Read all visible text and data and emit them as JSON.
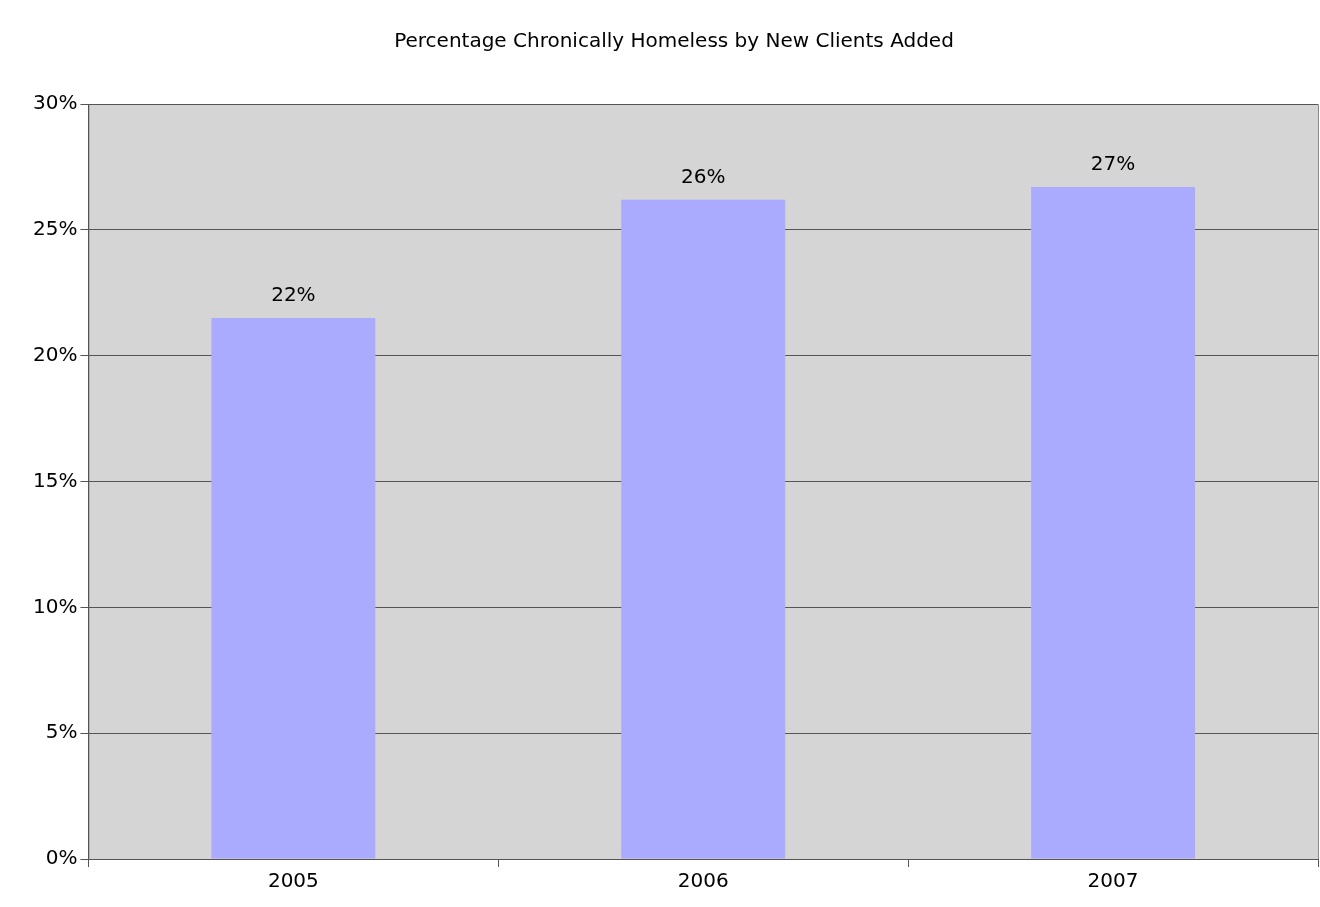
{
  "chart_data": {
    "type": "bar",
    "title": "Percentage Chronically Homeless by New Clients Added",
    "categories": [
      "2005",
      "2006",
      "2007"
    ],
    "values": [
      21.5,
      26.2,
      26.7
    ],
    "value_labels": [
      "22%",
      "26%",
      "27%"
    ],
    "color": "#aaaaff",
    "ylim": [
      0,
      30
    ],
    "yticks": [
      {
        "value": 0,
        "label": "0%"
      },
      {
        "value": 5,
        "label": "5%"
      },
      {
        "value": 10,
        "label": "10%"
      },
      {
        "value": 15,
        "label": "15%"
      },
      {
        "value": 20,
        "label": "20%"
      },
      {
        "value": 25,
        "label": "25%"
      },
      {
        "value": 30,
        "label": "30%"
      }
    ],
    "grid": "y",
    "legend": false
  }
}
